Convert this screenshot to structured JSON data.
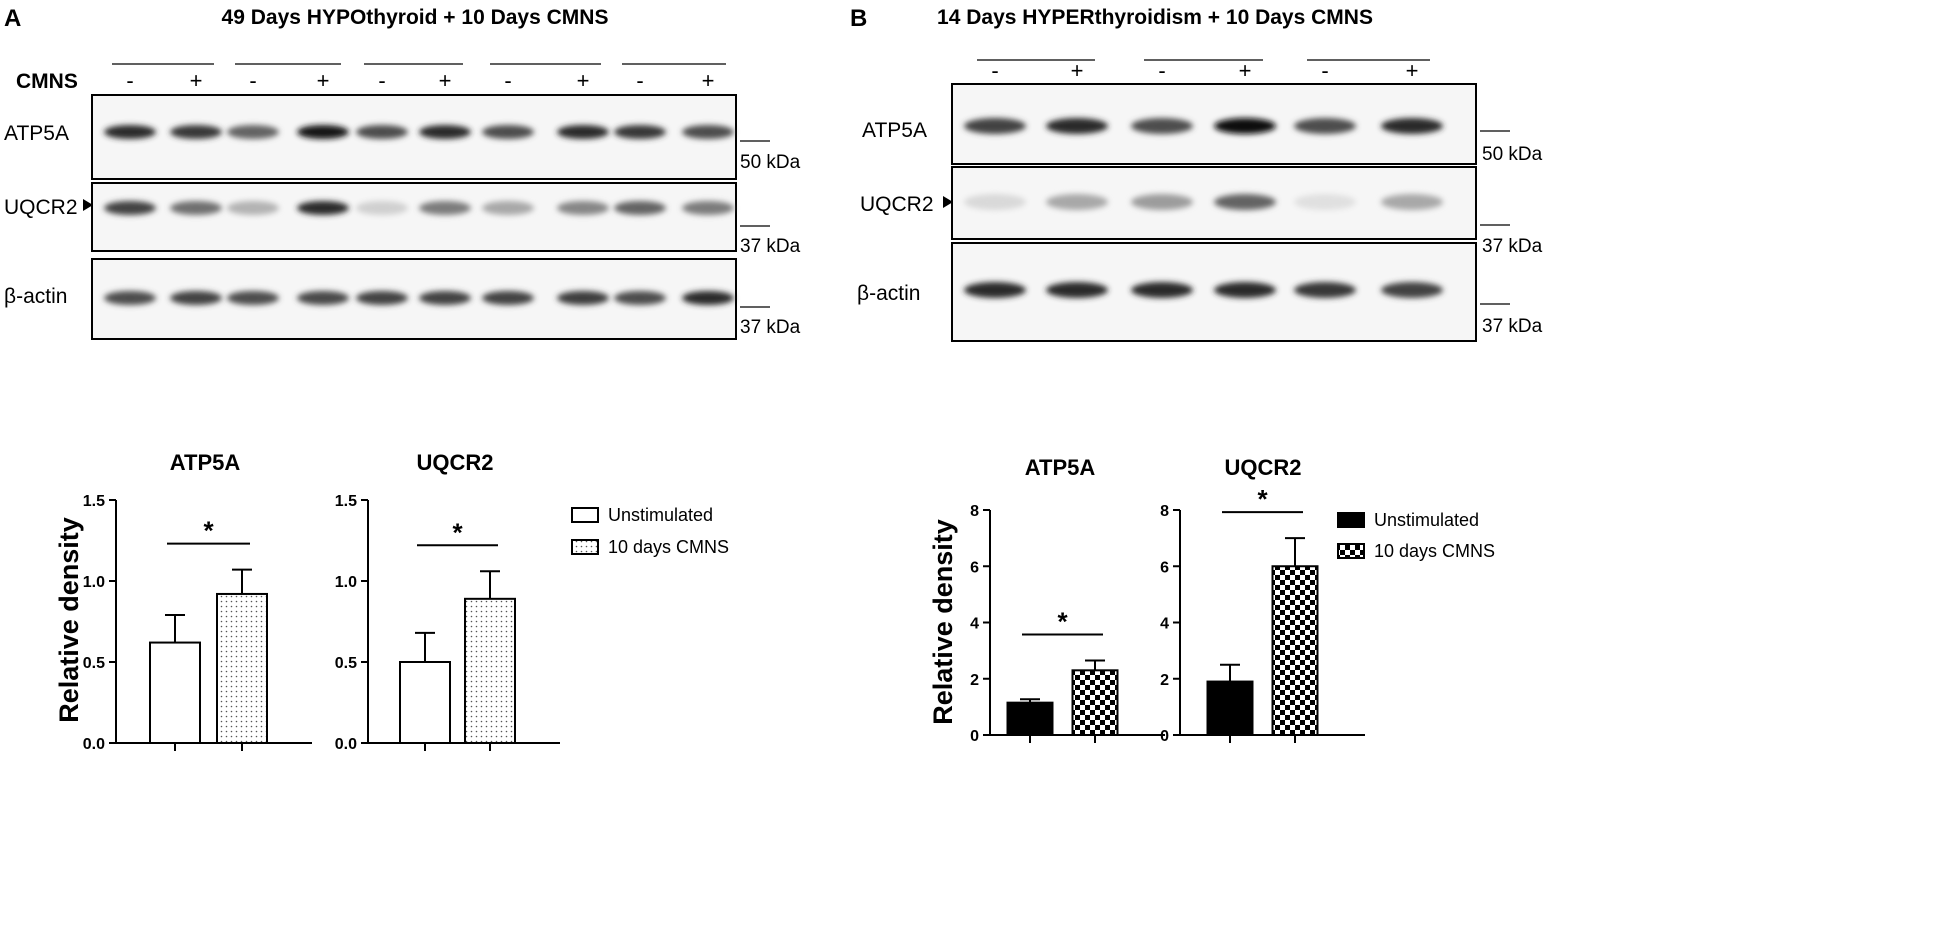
{
  "colors": {
    "ink": "#000000",
    "background": "#ffffff",
    "blot_background": "#f6f6f6"
  },
  "panel_a": {
    "letter": "A",
    "title": "49 Days HYPOthyroid + 10 Days CMNS",
    "row_label": "CMNS",
    "lane_signs": [
      "-",
      "+",
      "-",
      "+",
      "-",
      "+",
      "-",
      "+",
      "-",
      "+"
    ],
    "blots": [
      {
        "label": "ATP5A",
        "marker": "50 kDa",
        "band_intensity": [
          0.85,
          0.8,
          0.6,
          0.95,
          0.7,
          0.85,
          0.7,
          0.85,
          0.8,
          0.7
        ]
      },
      {
        "label": "UQCR2",
        "marker": "37 kDa",
        "band_intensity": [
          0.75,
          0.55,
          0.25,
          0.85,
          0.12,
          0.5,
          0.3,
          0.45,
          0.6,
          0.5
        ]
      },
      {
        "label": "β-actin",
        "marker": "37 kDa",
        "band_intensity": [
          0.7,
          0.75,
          0.7,
          0.72,
          0.75,
          0.75,
          0.75,
          0.78,
          0.7,
          0.85
        ]
      }
    ]
  },
  "panel_b": {
    "letter": "B",
    "title": "14 Days HYPERthyroidism + 10 Days CMNS",
    "lane_signs": [
      "-",
      "+",
      "-",
      "+",
      "-",
      "+"
    ],
    "blots": [
      {
        "label": "ATP5A",
        "marker": "50 kDa",
        "band_intensity": [
          0.75,
          0.85,
          0.7,
          1.0,
          0.7,
          0.85
        ]
      },
      {
        "label": "UQCR2",
        "marker": "37 kDa",
        "band_intensity": [
          0.08,
          0.3,
          0.35,
          0.6,
          0.05,
          0.3
        ]
      },
      {
        "label": "β-actin",
        "marker": "37 kDa",
        "band_intensity": [
          0.85,
          0.85,
          0.85,
          0.85,
          0.8,
          0.75
        ]
      }
    ]
  },
  "chart_data": [
    {
      "type": "bar",
      "title": "ATP5A",
      "categories": [
        "Unstimulated",
        "10 days CMNS"
      ],
      "values": [
        0.62,
        0.92
      ],
      "errors": [
        0.17,
        0.15
      ],
      "ylabel": "Relative density",
      "ylim": [
        0,
        1.5
      ],
      "yticks": [
        "0.0",
        "0.5",
        "1.0",
        "1.5"
      ],
      "fills": [
        "open",
        "dots"
      ],
      "significance": "*"
    },
    {
      "type": "bar",
      "title": "UQCR2",
      "categories": [
        "Unstimulated",
        "10 days CMNS"
      ],
      "values": [
        0.5,
        0.89
      ],
      "errors": [
        0.18,
        0.17
      ],
      "ylabel": "",
      "ylim": [
        0,
        1.5
      ],
      "yticks": [
        "0.0",
        "0.5",
        "1.0",
        "1.5"
      ],
      "fills": [
        "open",
        "dots"
      ],
      "significance": "*"
    },
    {
      "type": "bar",
      "title": "ATP5A",
      "categories": [
        "Unstimulated",
        "10 days CMNS"
      ],
      "values": [
        1.15,
        2.3
      ],
      "errors": [
        0.12,
        0.35
      ],
      "ylabel": "Relative density",
      "ylim": [
        0,
        8
      ],
      "yticks": [
        "0",
        "2",
        "4",
        "6",
        "8"
      ],
      "fills": [
        "solid",
        "checker"
      ],
      "significance": "*"
    },
    {
      "type": "bar",
      "title": "UQCR2",
      "categories": [
        "Unstimulated",
        "10 days CMNS"
      ],
      "values": [
        1.9,
        6.0
      ],
      "errors": [
        0.6,
        1.0
      ],
      "ylabel": "",
      "ylim": [
        0,
        8
      ],
      "yticks": [
        "0",
        "2",
        "4",
        "6",
        "8"
      ],
      "fills": [
        "solid",
        "checker"
      ],
      "significance": "*"
    }
  ],
  "legends": [
    {
      "entries": [
        {
          "label": "Unstimulated",
          "fill": "open"
        },
        {
          "label": "10 days CMNS",
          "fill": "dots"
        }
      ]
    },
    {
      "entries": [
        {
          "label": "Unstimulated",
          "fill": "solid"
        },
        {
          "label": "10 days CMNS",
          "fill": "checker"
        }
      ]
    }
  ]
}
